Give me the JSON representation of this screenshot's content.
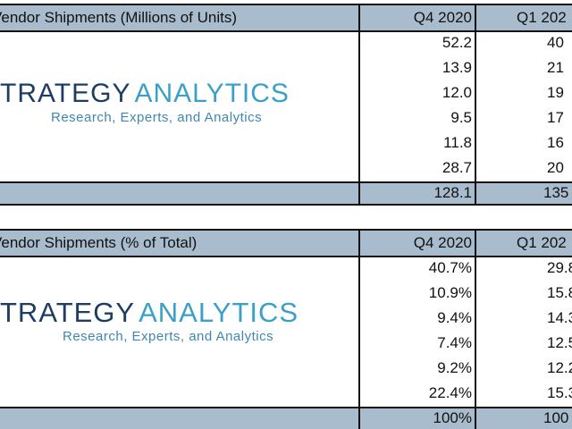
{
  "tables": [
    {
      "title": "Vendor Shipments (Millions of Units)",
      "columns": [
        "Q4 2020",
        "Q1 202"
      ],
      "rows": [
        [
          "52.2",
          "40"
        ],
        [
          "13.9",
          "21"
        ],
        [
          "12.0",
          "19"
        ],
        [
          "9.5",
          "17"
        ],
        [
          "11.8",
          "16"
        ],
        [
          "28.7",
          "20"
        ]
      ],
      "total": [
        "128.1",
        "135"
      ],
      "logo": {
        "name_a": "TRATEGY",
        "name_b": "ANALYTICS",
        "tagline": "Research, Experts, and Analytics"
      }
    },
    {
      "title": "Vendor Shipments (% of Total)",
      "columns": [
        "Q4 2020",
        "Q1 202"
      ],
      "rows": [
        [
          "40.7%",
          "29.8"
        ],
        [
          "10.9%",
          "15.8"
        ],
        [
          "9.4%",
          "14.3"
        ],
        [
          "7.4%",
          "12.5"
        ],
        [
          "9.2%",
          "12.2"
        ],
        [
          "22.4%",
          "15.3"
        ]
      ],
      "total": [
        "100%",
        "100"
      ],
      "logo": {
        "name_a": "TRATEGY",
        "name_b": "ANALYTICS",
        "tagline": "Research, Experts, and Analytics"
      }
    }
  ]
}
